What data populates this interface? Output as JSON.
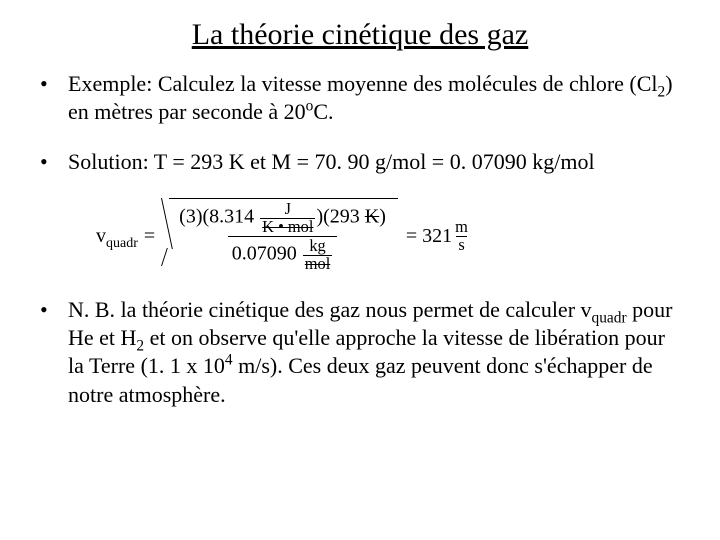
{
  "title": "La théorie cinétique des gaz",
  "bullets": {
    "b1_label": "Exemple:",
    "b1_rest": "  Calculez la vitesse moyenne des molécules de chlore (Cl",
    "b1_sub": "2",
    "b1_tail": ") en mètres par seconde à 20",
    "b1_deg": "o",
    "b1_unit": "C.",
    "b2_label": "Solution:",
    "b2_rest": "   T = 293 K  et M = 70. 90 g/mol = 0. 07090 kg/mol",
    "b3_label": "N. B.",
    "b3_rest1": "  la théorie cinétique des gaz nous permet de calculer v",
    "b3_sub": "quadr",
    "b3_rest2": " pour He et H",
    "b3_sub2": "2",
    "b3_rest3": " et on observe qu'elle approche la vitesse de libération pour la Terre (1. 1 x 10",
    "b3_sup": "4",
    "b3_rest4": " m/s).  Ces deux gaz peuvent donc s'échapper de notre atmosphère."
  },
  "equation": {
    "lhs_v": "v",
    "lhs_sub": "quadr",
    "equals": " = ",
    "num_a": "(3)(8.314 ",
    "unit_J": "J",
    "unit_Kmol": "K • mol",
    "num_b": ")(293 ",
    "K_strike": "K",
    "num_c": ")",
    "den_val": "0.07090 ",
    "unit_kg": "kg",
    "unit_mol": "mol",
    "result_eq": " = 321 ",
    "unit_m": "m",
    "unit_s": "s"
  },
  "style": {
    "background": "#ffffff",
    "text_color": "#000000",
    "title_fontsize": 30,
    "body_fontsize": 22,
    "eq_fontsize": 20,
    "font_family": "Times New Roman"
  }
}
